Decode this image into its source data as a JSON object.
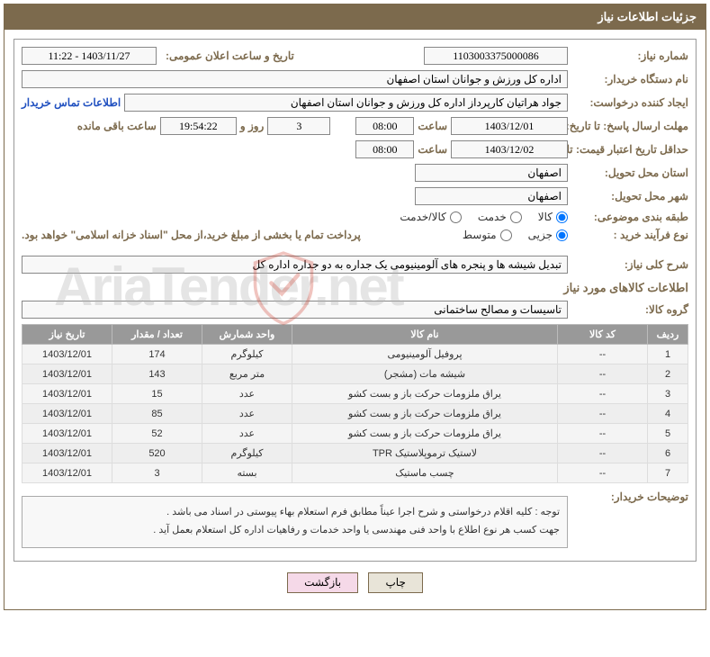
{
  "header": {
    "title": "جزئیات اطلاعات نیاز"
  },
  "fields": {
    "need_number_label": "شماره نیاز:",
    "need_number": "1103003375000086",
    "announce_date_label": "تاریخ و ساعت اعلان عمومی:",
    "announce_date": "1403/11/27 - 11:22",
    "buyer_org_label": "نام دستگاه خریدار:",
    "buyer_org": "اداره کل ورزش و جوانان استان اصفهان",
    "requester_label": "ایجاد کننده درخواست:",
    "requester": "جواد هراتیان کارپرداز اداره کل ورزش و جوانان استان اصفهان",
    "contact_link": "اطلاعات تماس خریدار",
    "response_deadline_label": "مهلت ارسال پاسخ: تا تاریخ:",
    "response_date": "1403/12/01",
    "time_label": "ساعت",
    "response_time": "08:00",
    "days_value": "3",
    "day_and": "روز و",
    "remaining_time": "19:54:22",
    "remaining_label": "ساعت باقی مانده",
    "validity_label": "حداقل تاریخ اعتبار قیمت: تا تاریخ:",
    "validity_date": "1403/12/02",
    "validity_time": "08:00",
    "delivery_province_label": "استان محل تحویل:",
    "delivery_province": "اصفهان",
    "delivery_city_label": "شهر محل تحویل:",
    "delivery_city": "اصفهان",
    "category_label": "طبقه بندی موضوعی:",
    "cat_goods": "کالا",
    "cat_service": "خدمت",
    "cat_goods_service": "کالا/خدمت",
    "process_label": "نوع فرآیند خرید :",
    "proc_small": "جزیی",
    "proc_medium": "متوسط",
    "payment_note": "پرداخت تمام یا بخشی از مبلغ خرید،از محل \"اسناد خزانه اسلامی\" خواهد بود.",
    "need_desc_label": "شرح کلی نیاز:",
    "need_desc": "تبدیل شیشه ها و پنجره های آلومینیومی یک جداره به دو جداره اداره کل",
    "goods_info_title": "اطلاعات کالاهای مورد نیاز",
    "goods_group_label": "گروه کالا:",
    "goods_group": "تاسیسات و مصالح ساختمانی",
    "buyer_notes_label": "توضیحات خریدار:",
    "notes_line1": "توجه : کلیه اقلام درخواستی و شرح اجرا عیناً مطابق فرم استعلام بهاء پیوستی در اسناد می باشد .",
    "notes_line2": "جهت کسب هر نوع اطلاع با واحد فنی مهندسی یا واحد خدمات و رفاهیات اداره کل استعلام بعمل آید ."
  },
  "table": {
    "headers": {
      "row": "ردیف",
      "code": "کد کالا",
      "name": "نام کالا",
      "unit": "واحد شمارش",
      "qty": "تعداد / مقدار",
      "date": "تاریخ نیاز"
    },
    "rows": [
      {
        "n": "1",
        "code": "--",
        "name": "پروفیل آلومینیومی",
        "unit": "کیلوگرم",
        "qty": "174",
        "date": "1403/12/01"
      },
      {
        "n": "2",
        "code": "--",
        "name": "شیشه مات (مشجر)",
        "unit": "متر مربع",
        "qty": "143",
        "date": "1403/12/01"
      },
      {
        "n": "3",
        "code": "--",
        "name": "یراق ملزومات حرکت باز و بست کشو",
        "unit": "عدد",
        "qty": "15",
        "date": "1403/12/01"
      },
      {
        "n": "4",
        "code": "--",
        "name": "یراق ملزومات حرکت باز و بست کشو",
        "unit": "عدد",
        "qty": "85",
        "date": "1403/12/01"
      },
      {
        "n": "5",
        "code": "--",
        "name": "یراق ملزومات حرکت باز و بست کشو",
        "unit": "عدد",
        "qty": "52",
        "date": "1403/12/01"
      },
      {
        "n": "6",
        "code": "--",
        "name": "لاستیک ترموپلاستیک TPR",
        "unit": "کیلوگرم",
        "qty": "520",
        "date": "1403/12/01"
      },
      {
        "n": "7",
        "code": "--",
        "name": "چسب ماستیک",
        "unit": "بسته",
        "qty": "3",
        "date": "1403/12/01"
      }
    ]
  },
  "buttons": {
    "print": "چاپ",
    "back": "بازگشت"
  },
  "watermark": "AriaTender.net"
}
